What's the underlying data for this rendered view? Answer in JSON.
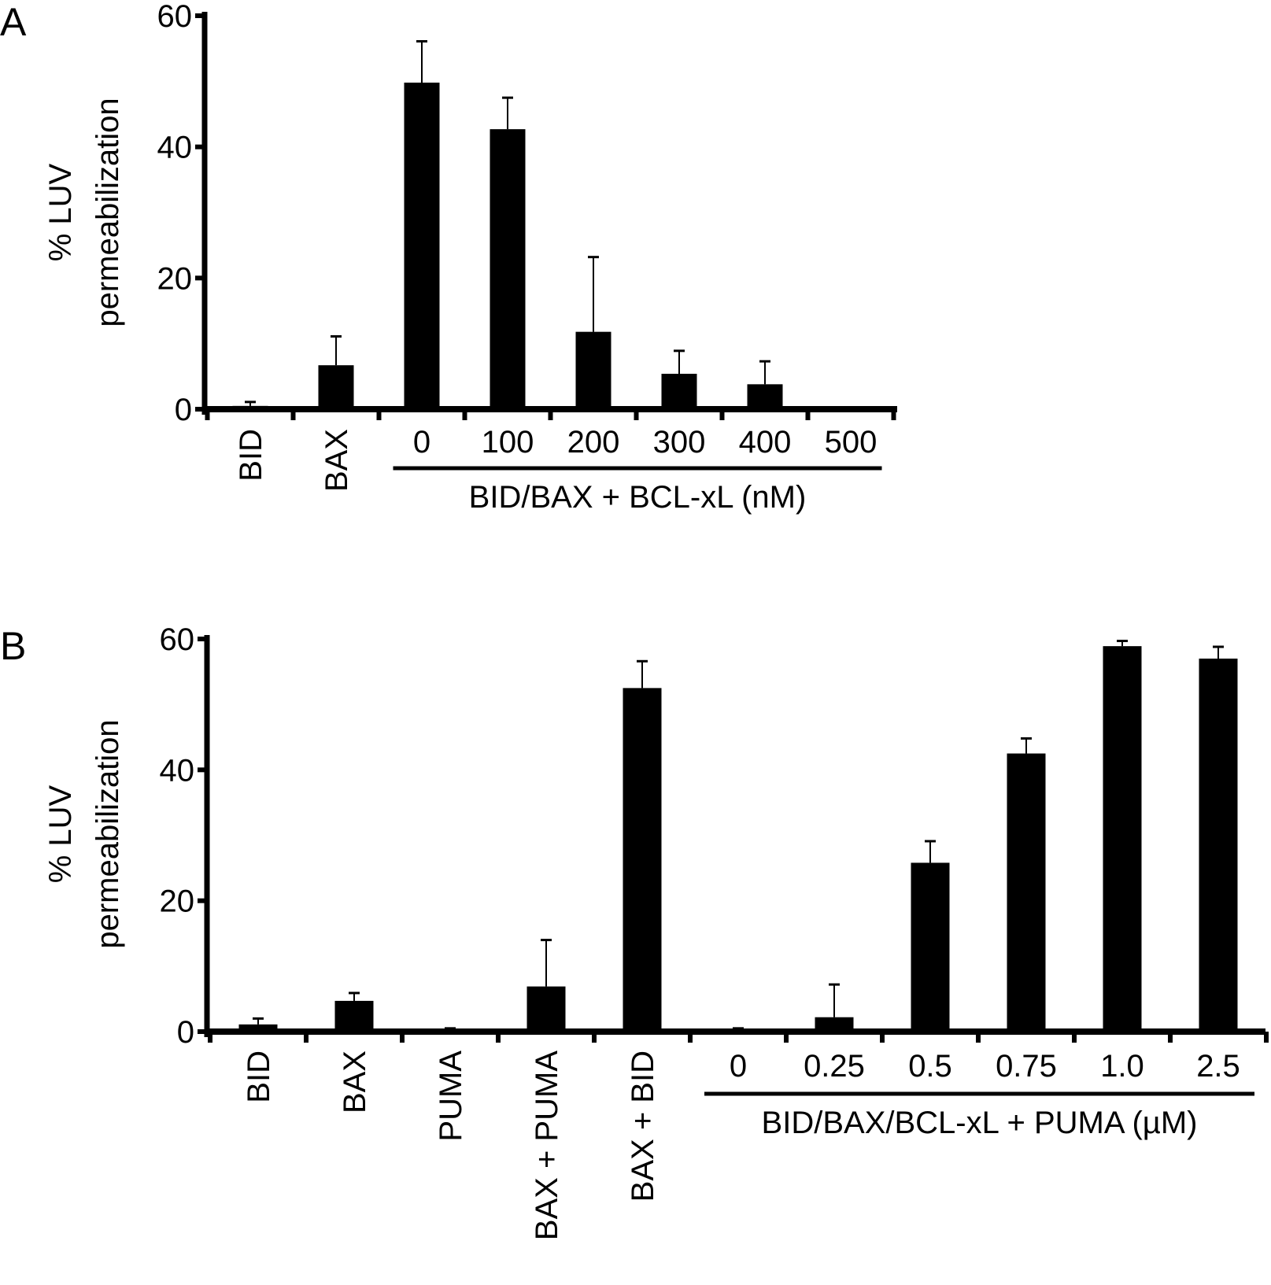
{
  "chart_data": [
    {
      "type": "bar",
      "panel_label": "A",
      "ylabel_lines": [
        "% LUV",
        "permeabilization"
      ],
      "ylim": [
        0,
        60
      ],
      "yticks": [
        "0",
        "20",
        "40",
        "60"
      ],
      "categories": [
        "BID",
        "BAX",
        "0",
        "100",
        "200",
        "300",
        "400",
        "500"
      ],
      "rotated_categories": [
        "BID",
        "BAX"
      ],
      "group_label": "BID/BAX + BCL-xL (nM)",
      "values": [
        0.5,
        6.7,
        49.8,
        42.7,
        11.8,
        5.4,
        3.8,
        0.1
      ],
      "error_upper": [
        1.1,
        11.1,
        56.1,
        47.5,
        23.2,
        8.9,
        7.3,
        0.1
      ],
      "grid": false,
      "bar_color": "#000000"
    },
    {
      "type": "bar",
      "panel_label": "B",
      "ylabel_lines": [
        "% LUV",
        "permeabilization"
      ],
      "ylim": [
        0,
        60
      ],
      "yticks": [
        "0",
        "20",
        "40",
        "60"
      ],
      "categories": [
        "BID",
        "BAX",
        "PUMA",
        "BAX + PUMA",
        "BAX + BID",
        "0",
        "0.25",
        "0.5",
        "0.75",
        "1.0",
        "2.5"
      ],
      "rotated_categories": [
        "BID",
        "BAX",
        "PUMA",
        "BAX + PUMA",
        "BAX + BID"
      ],
      "group_label": "BID/BAX/BCL-xL + PUMA (µM)",
      "values": [
        1.1,
        4.7,
        0.4,
        6.9,
        52.5,
        0.4,
        2.2,
        25.8,
        42.5,
        58.9,
        57.0
      ],
      "error_upper": [
        2.0,
        5.9,
        0.5,
        14.0,
        56.6,
        0.5,
        7.2,
        29.1,
        44.8,
        59.7,
        58.8
      ],
      "grid": false,
      "bar_color": "#000000"
    }
  ]
}
